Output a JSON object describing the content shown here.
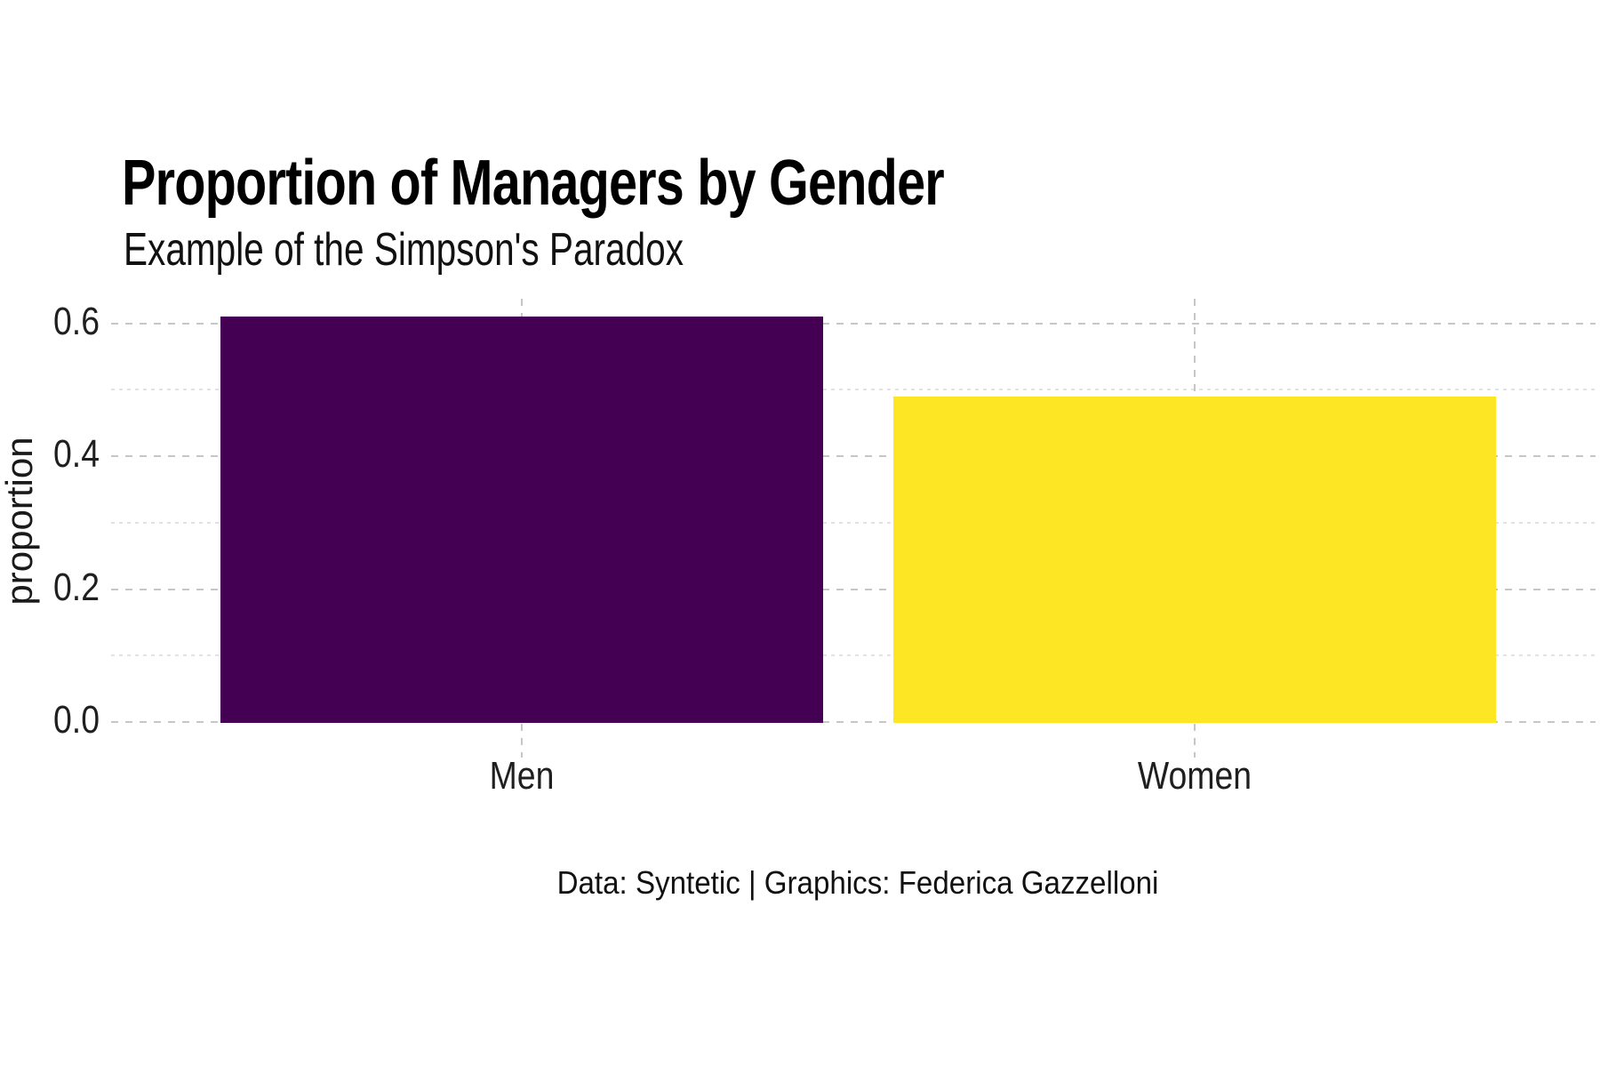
{
  "chart_data": {
    "type": "bar",
    "title": "Proportion of Managers by Gender",
    "subtitle": "Example of the Simpson's Paradox",
    "caption": "Data: Syntetic | Graphics: Federica Gazzelloni",
    "ylabel": "proportion",
    "xlabel": "",
    "categories": [
      "Men",
      "Women"
    ],
    "values": [
      0.61,
      0.49
    ],
    "bar_colors": [
      "#440154",
      "#FDE725"
    ],
    "ylim": [
      0,
      0.637
    ],
    "yticks_major": [
      0.0,
      0.2,
      0.4,
      0.6
    ],
    "ytick_labels": [
      "0.0",
      "0.2",
      "0.4",
      "0.6"
    ],
    "yticks_minor": [
      0.1,
      0.3,
      0.5
    ],
    "grid": {
      "style": "dashed",
      "major_color": "#c6c6c6",
      "minor_color": "#e2e2e2",
      "vertical_at_category_centers": true
    },
    "legend": "none",
    "background": "#ffffff"
  }
}
